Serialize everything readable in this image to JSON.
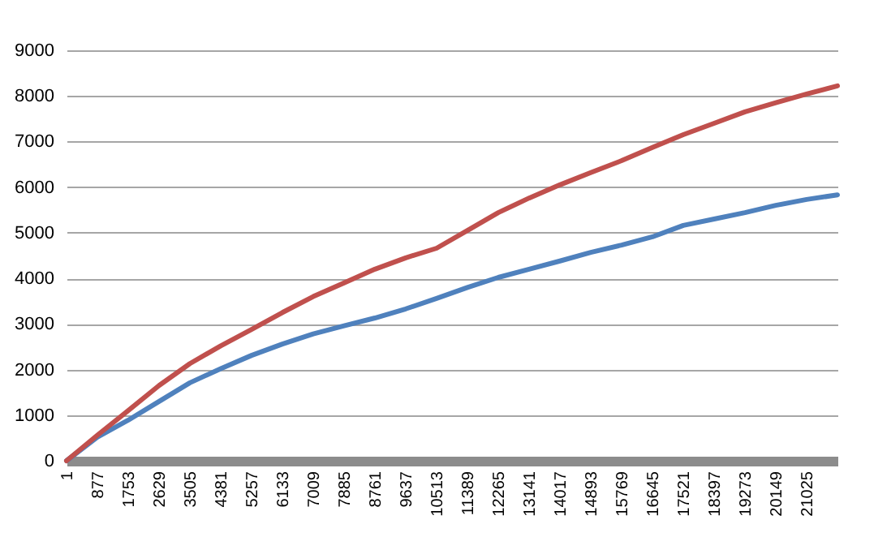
{
  "chart_data": {
    "type": "line",
    "x": [
      1,
      877,
      1753,
      2629,
      3505,
      4381,
      5257,
      6133,
      7009,
      7885,
      8761,
      9637,
      10513,
      11389,
      12265,
      13141,
      14017,
      14893,
      15769,
      16645,
      17521,
      18397,
      19273,
      20149,
      21025,
      21900
    ],
    "series": [
      {
        "color": "#4f81bd",
        "values": [
          0,
          520,
          890,
          1300,
          1710,
          2020,
          2310,
          2560,
          2780,
          2960,
          3130,
          3330,
          3560,
          3800,
          4020,
          4200,
          4380,
          4570,
          4730,
          4910,
          5160,
          5300,
          5440,
          5600,
          5730,
          5830
        ]
      },
      {
        "color": "#c0504d",
        "values": [
          0,
          560,
          1100,
          1650,
          2130,
          2520,
          2880,
          3250,
          3600,
          3900,
          4200,
          4450,
          4660,
          5050,
          5440,
          5760,
          6050,
          6320,
          6580,
          6870,
          7150,
          7400,
          7650,
          7850,
          8040,
          8220
        ]
      }
    ],
    "xlim": [
      1,
      21900
    ],
    "xticks": [
      1,
      877,
      1753,
      2629,
      3505,
      4381,
      5257,
      6133,
      7009,
      7885,
      8761,
      9637,
      10513,
      11389,
      12265,
      13141,
      14017,
      14893,
      15769,
      16645,
      17521,
      18397,
      19273,
      20149,
      21025
    ],
    "ylim": [
      0,
      9000
    ],
    "yticks": [
      0,
      1000,
      2000,
      3000,
      4000,
      5000,
      6000,
      7000,
      8000,
      9000
    ],
    "grid": "y",
    "line_style": "solid"
  }
}
